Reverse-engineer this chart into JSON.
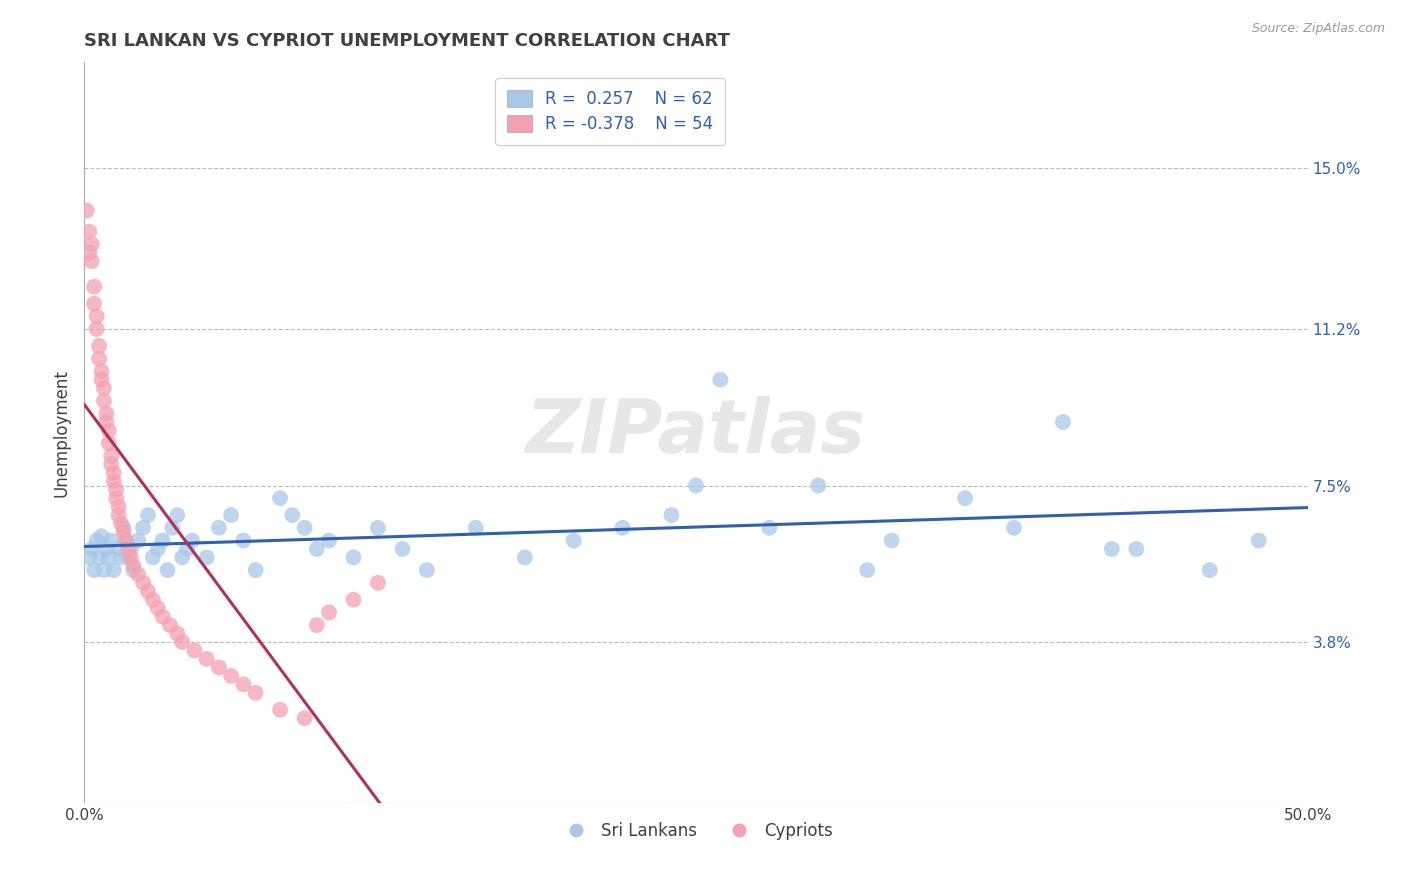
{
  "title": "SRI LANKAN VS CYPRIOT UNEMPLOYMENT CORRELATION CHART",
  "source_text": "Source: ZipAtlas.com",
  "ylabel": "Unemployment",
  "xlim": [
    0.0,
    0.5
  ],
  "ylim": [
    0.0,
    0.175
  ],
  "yticks": [
    0.038,
    0.075,
    0.112,
    0.15
  ],
  "ytick_labels": [
    "3.8%",
    "7.5%",
    "11.2%",
    "15.0%"
  ],
  "xticks": [
    0.0,
    0.1,
    0.2,
    0.3,
    0.4,
    0.5
  ],
  "xtick_labels": [
    "0.0%",
    "",
    "",
    "",
    "",
    "50.0%"
  ],
  "sri_lankans_color": "#a8c8e8",
  "cypriot_color": "#f4a0b0",
  "sri_lankans_line_color": "#3060b0",
  "cypriot_line_color": "#b03060",
  "background_color": "#ffffff",
  "grid_color": "#bbbbbb",
  "title_color": "#404040",
  "legend_r_sri": "R =  0.257",
  "legend_n_sri": "N = 62",
  "legend_r_cyp": "R = -0.378",
  "legend_n_cyp": "N = 54",
  "sri_lankans_label": "Sri Lankans",
  "cypriot_label": "Cypriots",
  "watermark": "ZIPatlas",
  "sri_x": [
    0.002,
    0.003,
    0.004,
    0.005,
    0.006,
    0.007,
    0.008,
    0.009,
    0.01,
    0.011,
    0.012,
    0.014,
    0.015,
    0.016,
    0.017,
    0.018,
    0.019,
    0.02,
    0.022,
    0.024,
    0.026,
    0.028,
    0.03,
    0.032,
    0.034,
    0.036,
    0.038,
    0.04,
    0.042,
    0.044,
    0.05,
    0.055,
    0.06,
    0.065,
    0.07,
    0.08,
    0.085,
    0.09,
    0.095,
    0.1,
    0.11,
    0.12,
    0.13,
    0.14,
    0.16,
    0.18,
    0.2,
    0.22,
    0.24,
    0.26,
    0.28,
    0.3,
    0.33,
    0.36,
    0.38,
    0.4,
    0.43,
    0.46,
    0.48,
    0.25,
    0.32,
    0.42
  ],
  "sri_y": [
    0.058,
    0.06,
    0.055,
    0.062,
    0.058,
    0.063,
    0.055,
    0.06,
    0.058,
    0.062,
    0.055,
    0.06,
    0.058,
    0.065,
    0.062,
    0.058,
    0.06,
    0.055,
    0.062,
    0.065,
    0.068,
    0.058,
    0.06,
    0.062,
    0.055,
    0.065,
    0.068,
    0.058,
    0.06,
    0.062,
    0.058,
    0.065,
    0.068,
    0.062,
    0.055,
    0.072,
    0.068,
    0.065,
    0.06,
    0.062,
    0.058,
    0.065,
    0.06,
    0.055,
    0.065,
    0.058,
    0.062,
    0.065,
    0.068,
    0.1,
    0.065,
    0.075,
    0.062,
    0.072,
    0.065,
    0.09,
    0.06,
    0.055,
    0.062,
    0.075,
    0.055,
    0.06
  ],
  "cyp_x": [
    0.001,
    0.002,
    0.002,
    0.003,
    0.003,
    0.004,
    0.004,
    0.005,
    0.005,
    0.006,
    0.006,
    0.007,
    0.007,
    0.008,
    0.008,
    0.009,
    0.009,
    0.01,
    0.01,
    0.011,
    0.011,
    0.012,
    0.012,
    0.013,
    0.013,
    0.014,
    0.014,
    0.015,
    0.016,
    0.017,
    0.018,
    0.019,
    0.02,
    0.022,
    0.024,
    0.026,
    0.028,
    0.03,
    0.032,
    0.035,
    0.038,
    0.04,
    0.045,
    0.05,
    0.055,
    0.06,
    0.065,
    0.07,
    0.08,
    0.09,
    0.095,
    0.1,
    0.11,
    0.12
  ],
  "cyp_y": [
    0.14,
    0.135,
    0.13,
    0.128,
    0.132,
    0.122,
    0.118,
    0.115,
    0.112,
    0.108,
    0.105,
    0.102,
    0.1,
    0.098,
    0.095,
    0.092,
    0.09,
    0.088,
    0.085,
    0.082,
    0.08,
    0.078,
    0.076,
    0.074,
    0.072,
    0.07,
    0.068,
    0.066,
    0.064,
    0.062,
    0.06,
    0.058,
    0.056,
    0.054,
    0.052,
    0.05,
    0.048,
    0.046,
    0.044,
    0.042,
    0.04,
    0.038,
    0.036,
    0.034,
    0.032,
    0.03,
    0.028,
    0.026,
    0.022,
    0.02,
    0.042,
    0.045,
    0.048,
    0.052
  ]
}
